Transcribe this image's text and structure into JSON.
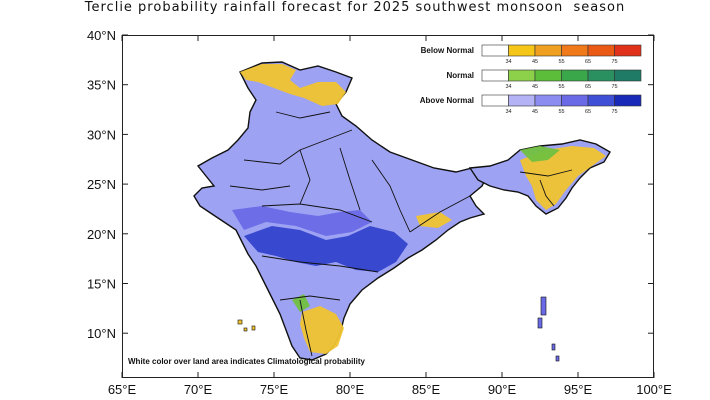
{
  "title": "Terclie probability rainfall forecast for 2025 southwest monsoon  season",
  "axes": {
    "x_ticks": [
      "65°E",
      "70°E",
      "75°E",
      "80°E",
      "85°E",
      "90°E",
      "95°E",
      "100°E"
    ],
    "y_ticks": [
      "40°N",
      "35°N",
      "30°N",
      "25°N",
      "20°N",
      "15°N",
      "10°N"
    ]
  },
  "legend": {
    "tick_values": [
      "34",
      "45",
      "55",
      "65",
      "75"
    ],
    "categories": [
      {
        "name": "Below Normal",
        "colors": [
          "#ffffff",
          "#f5c518",
          "#f0a020",
          "#f07a1a",
          "#ea5a14",
          "#e0321a"
        ]
      },
      {
        "name": "Normal",
        "colors": [
          "#ffffff",
          "#8dd04a",
          "#5cbd3a",
          "#3aa84a",
          "#2a9060",
          "#1f7a66"
        ]
      },
      {
        "name": "Above Normal",
        "colors": [
          "#ffffff",
          "#b3b3f5",
          "#8c8cf0",
          "#6a6ae6",
          "#3f4fd6",
          "#1a2ab8"
        ]
      }
    ]
  },
  "note": "White color over land area indicates Climatological probability",
  "map_colors": {
    "land_base": "#9ea2f2",
    "above_strong": "#3344cc",
    "above_medium": "#6a6ae6",
    "below": "#f0c430",
    "normal": "#72c040",
    "boundary": "#111111",
    "ocean": "#ffffff"
  }
}
